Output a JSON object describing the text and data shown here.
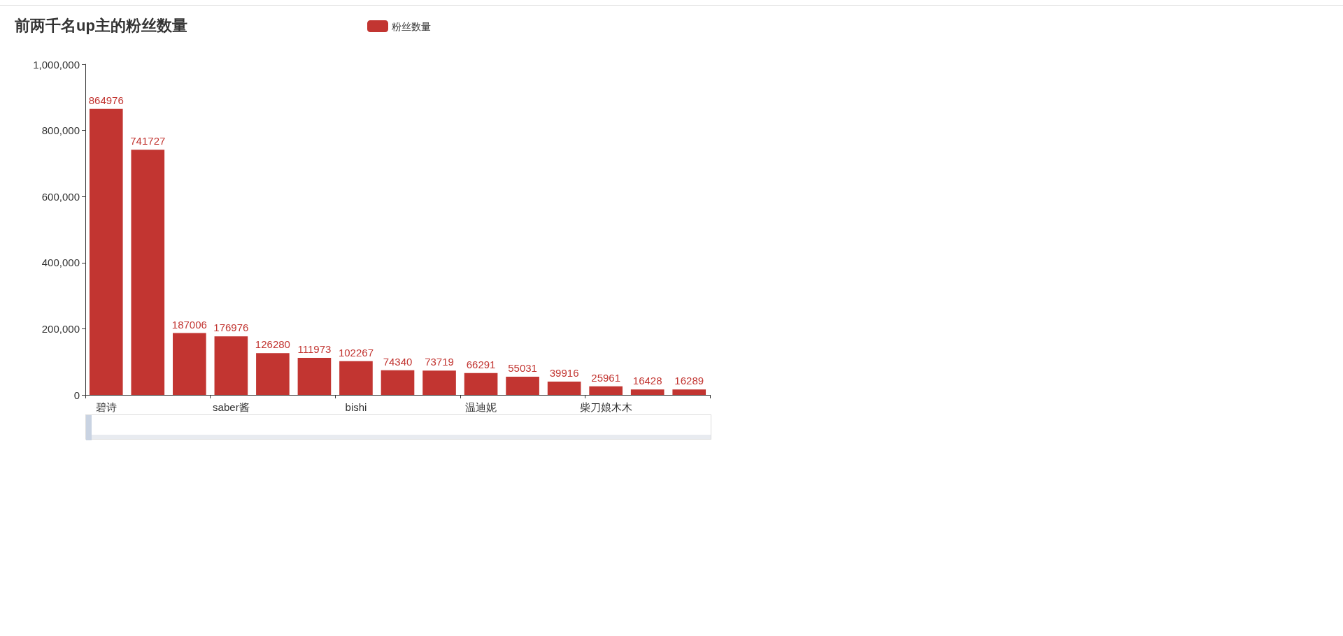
{
  "chart_data": {
    "type": "bar",
    "title": "前两千名up主的粉丝数量",
    "categories": [
      "碧诗",
      null,
      null,
      "saber酱",
      null,
      null,
      "bishi",
      null,
      null,
      "温迪妮",
      null,
      null,
      "柴刀娘木木",
      null,
      null
    ],
    "series": [
      {
        "name": "粉丝数量",
        "color": "#c23531",
        "values": [
          864976,
          741727,
          187006,
          176976,
          126280,
          111973,
          102267,
          74340,
          73719,
          66291,
          55031,
          39916,
          25961,
          16428,
          16289
        ]
      }
    ],
    "ylim": [
      0,
      1000000
    ],
    "yticks": [
      {
        "value": 0,
        "label": "0"
      },
      {
        "value": 200000,
        "label": "200,000"
      },
      {
        "value": 400000,
        "label": "400,000"
      },
      {
        "value": 600000,
        "label": "600,000"
      },
      {
        "value": 800000,
        "label": "800,000"
      },
      {
        "value": 1000000,
        "label": "1,000,000"
      }
    ],
    "data_labels": true,
    "legend": "top",
    "grid": false
  }
}
